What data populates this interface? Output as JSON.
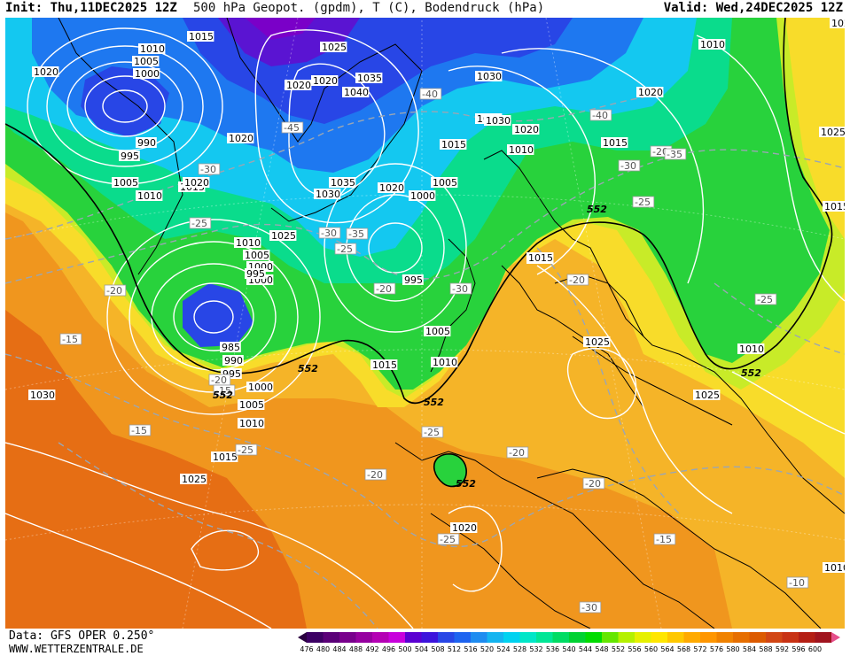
{
  "header": {
    "init": "Init: Thu,11DEC2025 12Z",
    "title": "500 hPa Geopot. (gpdm), T (C), Bodendruck (hPa)",
    "valid": "Valid: Wed,24DEC2025 12Z"
  },
  "footer": {
    "data_source": "Data: GFS OPER 0.250°",
    "site": "WWW.WETTERZENTRALE.DE"
  },
  "colorbar": {
    "labels": [
      "476",
      "480",
      "484",
      "488",
      "492",
      "496",
      "500",
      "504",
      "508",
      "512",
      "516",
      "520",
      "524",
      "528",
      "532",
      "536",
      "540",
      "544",
      "548",
      "552",
      "556",
      "560",
      "564",
      "568",
      "572",
      "576",
      "580",
      "584",
      "588",
      "592",
      "596",
      "600"
    ],
    "colors": [
      "#3c0064",
      "#5a0078",
      "#78008c",
      "#9600a0",
      "#b400b4",
      "#c800dc",
      "#5a00d2",
      "#3c14dc",
      "#2846e6",
      "#1e64f0",
      "#1e8cf0",
      "#14b4f0",
      "#00d2f0",
      "#00e6c8",
      "#00e696",
      "#00dc64",
      "#00d232",
      "#00dc00",
      "#64e600",
      "#b4f000",
      "#e6f000",
      "#ffe600",
      "#ffc800",
      "#ffaa00",
      "#ff9600",
      "#f08200",
      "#e66e00",
      "#dc5a00",
      "#d24614",
      "#c83214",
      "#b41e14",
      "#a0141e"
    ]
  },
  "map": {
    "colors": {
      "red": "#d2461e",
      "deep_orange": "#e66e14",
      "orange": "#f0961e",
      "light_orange": "#f5b428",
      "yellow": "#f8dc2a",
      "yellow_green": "#c8eb28",
      "green": "#28d23c",
      "teal": "#0adc8c",
      "cyan": "#14c8f0",
      "blue": "#1e78f0",
      "deep_blue": "#2846e6",
      "violet": "#5a14d2",
      "purple": "#7a00c8"
    },
    "pressure_labels": [
      "1015",
      "1025",
      "1010",
      "1005",
      "1000",
      "1020",
      "990",
      "995",
      "1005",
      "1010",
      "1015",
      "1020",
      "1035",
      "1040",
      "1020",
      "1035",
      "1030",
      "1030",
      "1025",
      "1020",
      "1015",
      "1010",
      "1005",
      "1000",
      "995",
      "1010",
      "1000",
      "1020",
      "1010",
      "1020",
      "1015",
      "1025",
      "1015",
      "1015",
      "1005",
      "1000",
      "995",
      "985",
      "990",
      "995",
      "1000",
      "1005",
      "1010",
      "1015",
      "1005",
      "1010",
      "1025",
      "1015",
      "1025",
      "1030",
      "1025",
      "1010",
      "1020",
      "1020",
      "1030",
      "1025",
      "1015",
      "1020",
      "1020",
      "1010"
    ],
    "temp_labels": [
      "-40",
      "-45",
      "-30",
      "-25",
      "-20",
      "-15",
      "-30",
      "-35",
      "-25",
      "-20",
      "-30",
      "-20",
      "-40",
      "-30",
      "-25",
      "-35",
      "-20",
      "-20",
      "-25",
      "-20",
      "-15",
      "-15",
      "-25",
      "-20",
      "-25",
      "-20",
      "-15",
      "-30",
      "-25",
      "-10"
    ],
    "geopot_labels": [
      "552",
      "552",
      "552",
      "552",
      "552",
      "552"
    ]
  }
}
